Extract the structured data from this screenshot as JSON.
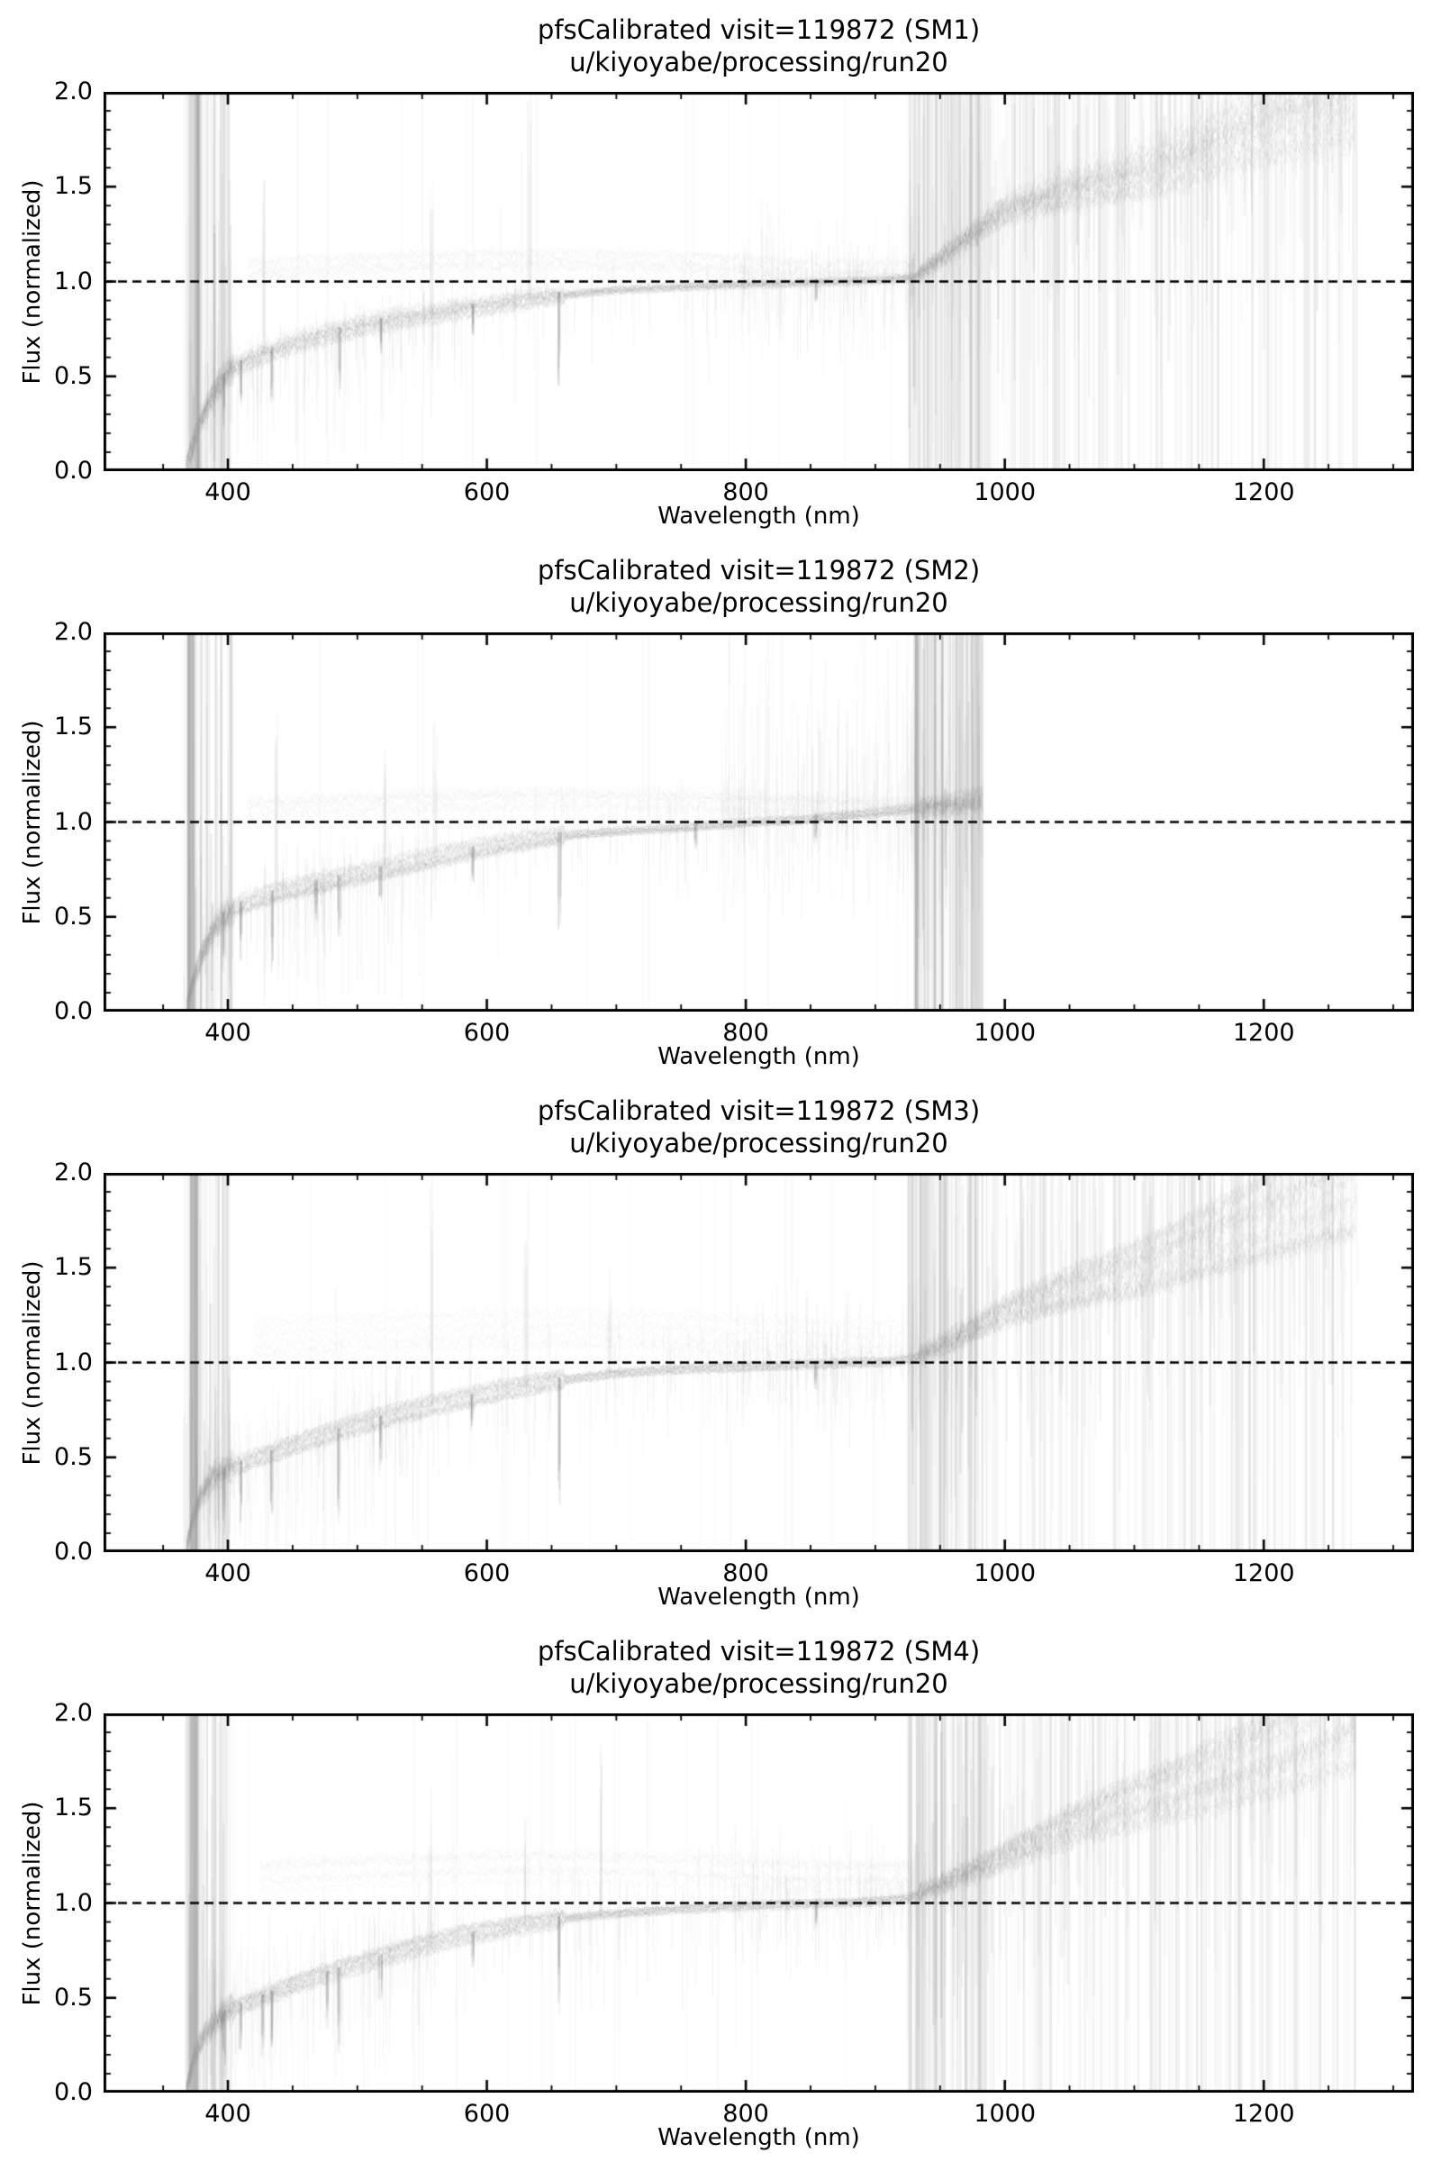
{
  "figure": {
    "background_color": "#ffffff",
    "frame_color": "#000000",
    "spectra_color": "#6e6e6e",
    "stripe_color": "#8c8c8c",
    "reference_line": {
      "y": 1.0,
      "style": "dashed",
      "color": "#000000"
    }
  },
  "chart_data": [
    {
      "type": "line",
      "panel": "SM1",
      "title": "pfsCalibrated visit=119872 (SM1)",
      "subtitle": "u/kiyoyabe/processing/run20",
      "xlabel": "Wavelength (nm)",
      "ylabel": "Flux (normalized)",
      "xlim": [
        304,
        1316
      ],
      "ylim": [
        0.0,
        2.0
      ],
      "xticks": [
        400,
        600,
        800,
        1000,
        1200
      ],
      "xtick_labels": [
        "400",
        "600",
        "800",
        "1000",
        "1200"
      ],
      "yticks": [
        0.0,
        0.5,
        1.0,
        1.5,
        2.0
      ],
      "ytick_labels": [
        "0.0",
        "0.5",
        "1.0",
        "1.5",
        "2.0"
      ],
      "x_minor_step": 50,
      "y_minor_step": 0.1,
      "reference_line_y": 1.0,
      "wavelength_coverage_nm": [
        368,
        1272
      ],
      "envelope": [
        [
          368,
          0.02
        ],
        [
          372,
          0.12
        ],
        [
          378,
          0.25
        ],
        [
          385,
          0.36
        ],
        [
          392,
          0.44
        ],
        [
          400,
          0.53
        ],
        [
          415,
          0.58
        ],
        [
          430,
          0.62
        ],
        [
          450,
          0.67
        ],
        [
          475,
          0.72
        ],
        [
          500,
          0.76
        ],
        [
          525,
          0.795
        ],
        [
          550,
          0.82
        ],
        [
          575,
          0.85
        ],
        [
          600,
          0.87
        ],
        [
          625,
          0.9
        ],
        [
          650,
          0.92
        ],
        [
          675,
          0.94
        ],
        [
          700,
          0.955
        ],
        [
          730,
          0.965
        ],
        [
          760,
          0.975
        ],
        [
          800,
          0.985
        ],
        [
          850,
          0.995
        ],
        [
          900,
          1.005
        ],
        [
          930,
          1.02
        ],
        [
          950,
          1.12
        ],
        [
          975,
          1.25
        ],
        [
          1000,
          1.38
        ],
        [
          1030,
          1.44
        ],
        [
          1060,
          1.5
        ],
        [
          1100,
          1.56
        ],
        [
          1140,
          1.66
        ],
        [
          1180,
          1.78
        ],
        [
          1220,
          1.88
        ],
        [
          1250,
          1.95
        ],
        [
          1272,
          2.0
        ]
      ],
      "upper_band": {
        "range": [
          415,
          930
        ],
        "flux": [
          1.01,
          1.12
        ]
      },
      "hair_regions": [
        {
          "range": [
            380,
            560
          ],
          "count": 220,
          "up": 0.12,
          "down": 0.5
        },
        {
          "range": [
            560,
            800
          ],
          "count": 120,
          "up": 0.15,
          "down": 0.3
        },
        {
          "range": [
            790,
            935
          ],
          "count": 200,
          "up": 0.3,
          "down": 0.35
        }
      ],
      "absorption_lines": [
        [
          397,
          0.25
        ],
        [
          410,
          0.22
        ],
        [
          434,
          0.25
        ],
        [
          486,
          0.32
        ],
        [
          518,
          0.16
        ],
        [
          589,
          0.14
        ],
        [
          656,
          0.45
        ],
        [
          854,
          0.1
        ]
      ],
      "spike_columns": [
        [
          427,
          1.55
        ],
        [
          557,
          1.5
        ],
        [
          633,
          1.95
        ]
      ],
      "noise_bands": [
        {
          "range": [
            366,
            404
          ],
          "count": 100,
          "full": 0.45,
          "a_max": 0.22,
          "dark": [
            371,
            379
          ]
        },
        {
          "range": [
            925,
            985
          ],
          "count": 180,
          "full": 0.55,
          "a_max": 0.2
        },
        {
          "range": [
            985,
            1272
          ],
          "count": 430,
          "full": 0.42,
          "a_max": 0.16
        },
        {
          "range": [
            404,
            925
          ],
          "count": 20,
          "full": 0.7,
          "a_max": 0.05
        }
      ],
      "seed": 11
    },
    {
      "type": "line",
      "panel": "SM2",
      "title": "pfsCalibrated visit=119872 (SM2)",
      "subtitle": "u/kiyoyabe/processing/run20",
      "xlabel": "Wavelength (nm)",
      "ylabel": "Flux (normalized)",
      "xlim": [
        304,
        1316
      ],
      "ylim": [
        0.0,
        2.0
      ],
      "xticks": [
        400,
        600,
        800,
        1000,
        1200
      ],
      "xtick_labels": [
        "400",
        "600",
        "800",
        "1000",
        "1200"
      ],
      "yticks": [
        0.0,
        0.5,
        1.0,
        1.5,
        2.0
      ],
      "ytick_labels": [
        "0.0",
        "0.5",
        "1.0",
        "1.5",
        "2.0"
      ],
      "x_minor_step": 50,
      "y_minor_step": 0.1,
      "reference_line_y": 1.0,
      "wavelength_coverage_nm": [
        368,
        983
      ],
      "envelope": [
        [
          368,
          0.02
        ],
        [
          373,
          0.15
        ],
        [
          380,
          0.3
        ],
        [
          388,
          0.42
        ],
        [
          396,
          0.5
        ],
        [
          410,
          0.56
        ],
        [
          425,
          0.6
        ],
        [
          440,
          0.63
        ],
        [
          460,
          0.66
        ],
        [
          480,
          0.69
        ],
        [
          500,
          0.72
        ],
        [
          520,
          0.75
        ],
        [
          540,
          0.78
        ],
        [
          560,
          0.81
        ],
        [
          580,
          0.84
        ],
        [
          600,
          0.865
        ],
        [
          620,
          0.89
        ],
        [
          640,
          0.91
        ],
        [
          660,
          0.93
        ],
        [
          690,
          0.945
        ],
        [
          720,
          0.96
        ],
        [
          750,
          0.97
        ],
        [
          780,
          0.985
        ],
        [
          810,
          1.0
        ],
        [
          840,
          1.01
        ],
        [
          870,
          1.03
        ],
        [
          900,
          1.05
        ],
        [
          930,
          1.07
        ],
        [
          955,
          1.09
        ],
        [
          983,
          1.12
        ]
      ],
      "upper_band": {
        "range": [
          415,
          975
        ],
        "flux": [
          1.02,
          1.13
        ]
      },
      "hair_regions": [
        {
          "range": [
            380,
            560
          ],
          "count": 220,
          "up": 0.2,
          "down": 0.55
        },
        {
          "range": [
            560,
            780
          ],
          "count": 120,
          "up": 0.2,
          "down": 0.3
        },
        {
          "range": [
            780,
            933
          ],
          "count": 260,
          "up": 0.7,
          "down": 0.4
        }
      ],
      "absorption_lines": [
        [
          397,
          0.3
        ],
        [
          410,
          0.28
        ],
        [
          434,
          0.42
        ],
        [
          468,
          0.2
        ],
        [
          486,
          0.3
        ],
        [
          518,
          0.22
        ],
        [
          589,
          0.18
        ],
        [
          656,
          0.45
        ],
        [
          761,
          0.12
        ],
        [
          854,
          0.12
        ]
      ],
      "spike_columns": [
        [
          437,
          1.5
        ],
        [
          521,
          1.35
        ],
        [
          560,
          1.5
        ]
      ],
      "noise_bands": [
        {
          "range": [
            366,
            404
          ],
          "count": 90,
          "full": 0.4,
          "a_max": 0.22,
          "dark": [
            369,
            374
          ]
        },
        {
          "range": [
            930,
            983
          ],
          "count": 230,
          "full": 0.6,
          "a_max": 0.2
        },
        {
          "range": [
            404,
            930
          ],
          "count": 18,
          "full": 0.7,
          "a_max": 0.05
        }
      ],
      "seed": 22
    },
    {
      "type": "line",
      "panel": "SM3",
      "title": "pfsCalibrated visit=119872 (SM3)",
      "subtitle": "u/kiyoyabe/processing/run20",
      "xlabel": "Wavelength (nm)",
      "ylabel": "Flux (normalized)",
      "xlim": [
        304,
        1316
      ],
      "ylim": [
        0.0,
        2.0
      ],
      "xticks": [
        400,
        600,
        800,
        1000,
        1200
      ],
      "xtick_labels": [
        "400",
        "600",
        "800",
        "1000",
        "1200"
      ],
      "yticks": [
        0.0,
        0.5,
        1.0,
        1.5,
        2.0
      ],
      "ytick_labels": [
        "0.0",
        "0.5",
        "1.0",
        "1.5",
        "2.0"
      ],
      "x_minor_step": 50,
      "y_minor_step": 0.1,
      "reference_line_y": 1.0,
      "wavelength_coverage_nm": [
        368,
        1272
      ],
      "envelope": [
        [
          368,
          0.02
        ],
        [
          372,
          0.15
        ],
        [
          378,
          0.28
        ],
        [
          386,
          0.37
        ],
        [
          395,
          0.42
        ],
        [
          410,
          0.46
        ],
        [
          430,
          0.51
        ],
        [
          450,
          0.555
        ],
        [
          470,
          0.6
        ],
        [
          490,
          0.645
        ],
        [
          510,
          0.685
        ],
        [
          530,
          0.72
        ],
        [
          550,
          0.755
        ],
        [
          570,
          0.785
        ],
        [
          590,
          0.815
        ],
        [
          610,
          0.845
        ],
        [
          630,
          0.87
        ],
        [
          650,
          0.895
        ],
        [
          675,
          0.92
        ],
        [
          700,
          0.94
        ],
        [
          730,
          0.955
        ],
        [
          760,
          0.965
        ],
        [
          800,
          0.975
        ],
        [
          840,
          0.985
        ],
        [
          880,
          0.995
        ],
        [
          910,
          1.0
        ],
        [
          930,
          1.02
        ],
        [
          950,
          1.08
        ],
        [
          975,
          1.17
        ],
        [
          1000,
          1.26
        ],
        [
          1030,
          1.33
        ],
        [
          1060,
          1.4
        ],
        [
          1100,
          1.47
        ],
        [
          1140,
          1.57
        ],
        [
          1180,
          1.67
        ],
        [
          1220,
          1.78
        ],
        [
          1250,
          1.86
        ],
        [
          1272,
          1.92
        ]
      ],
      "upper_band": {
        "range": [
          420,
          930
        ],
        "flux": [
          1.03,
          1.25
        ]
      },
      "hair_regions": [
        {
          "range": [
            380,
            560
          ],
          "count": 240,
          "up": 0.3,
          "down": 0.55
        },
        {
          "range": [
            560,
            800
          ],
          "count": 140,
          "up": 0.25,
          "down": 0.35
        },
        {
          "range": [
            790,
            935
          ],
          "count": 180,
          "up": 0.3,
          "down": 0.3
        }
      ],
      "absorption_lines": [
        [
          397,
          0.3
        ],
        [
          410,
          0.28
        ],
        [
          434,
          0.3
        ],
        [
          486,
          0.5
        ],
        [
          518,
          0.22
        ],
        [
          589,
          0.16
        ],
        [
          656,
          0.6
        ],
        [
          854,
          0.12
        ]
      ],
      "spike_columns": [
        [
          557,
          1.95
        ],
        [
          630,
          1.8
        ],
        [
          695,
          1.5
        ],
        [
          1013,
          1.9
        ]
      ],
      "noise_bands": [
        {
          "range": [
            366,
            402
          ],
          "count": 100,
          "full": 0.45,
          "a_max": 0.22,
          "dark": [
            370,
            376
          ]
        },
        {
          "range": [
            925,
            985
          ],
          "count": 180,
          "full": 0.5,
          "a_max": 0.2
        },
        {
          "range": [
            985,
            1272
          ],
          "count": 400,
          "full": 0.42,
          "a_max": 0.16
        },
        {
          "range": [
            402,
            925
          ],
          "count": 22,
          "full": 0.7,
          "a_max": 0.05
        }
      ],
      "seed": 33
    },
    {
      "type": "line",
      "panel": "SM4",
      "title": "pfsCalibrated visit=119872 (SM4)",
      "subtitle": "u/kiyoyabe/processing/run20",
      "xlabel": "Wavelength (nm)",
      "ylabel": "Flux (normalized)",
      "xlim": [
        304,
        1316
      ],
      "ylim": [
        0.0,
        2.0
      ],
      "xticks": [
        400,
        600,
        800,
        1000,
        1200
      ],
      "xtick_labels": [
        "400",
        "600",
        "800",
        "1000",
        "1200"
      ],
      "yticks": [
        0.0,
        0.5,
        1.0,
        1.5,
        2.0
      ],
      "ytick_labels": [
        "0.0",
        "0.5",
        "1.0",
        "1.5",
        "2.0"
      ],
      "x_minor_step": 50,
      "y_minor_step": 0.1,
      "reference_line_y": 1.0,
      "wavelength_coverage_nm": [
        368,
        1272
      ],
      "envelope": [
        [
          368,
          0.02
        ],
        [
          374,
          0.18
        ],
        [
          382,
          0.3
        ],
        [
          392,
          0.38
        ],
        [
          400,
          0.43
        ],
        [
          420,
          0.48
        ],
        [
          440,
          0.535
        ],
        [
          460,
          0.585
        ],
        [
          480,
          0.63
        ],
        [
          500,
          0.67
        ],
        [
          520,
          0.71
        ],
        [
          540,
          0.75
        ],
        [
          560,
          0.785
        ],
        [
          580,
          0.82
        ],
        [
          600,
          0.845
        ],
        [
          620,
          0.87
        ],
        [
          640,
          0.89
        ],
        [
          660,
          0.915
        ],
        [
          690,
          0.935
        ],
        [
          720,
          0.95
        ],
        [
          750,
          0.965
        ],
        [
          780,
          0.975
        ],
        [
          810,
          0.985
        ],
        [
          840,
          0.99
        ],
        [
          870,
          0.995
        ],
        [
          900,
          1.005
        ],
        [
          925,
          1.02
        ],
        [
          950,
          1.09
        ],
        [
          975,
          1.16
        ],
        [
          1000,
          1.24
        ],
        [
          1030,
          1.33
        ],
        [
          1060,
          1.42
        ],
        [
          1100,
          1.51
        ],
        [
          1140,
          1.6
        ],
        [
          1180,
          1.7
        ],
        [
          1220,
          1.8
        ],
        [
          1250,
          1.9
        ],
        [
          1272,
          1.97
        ]
      ],
      "upper_band": {
        "range": [
          425,
          930
        ],
        "flux": [
          1.03,
          1.22
        ]
      },
      "hair_regions": [
        {
          "range": [
            380,
            560
          ],
          "count": 240,
          "up": 0.3,
          "down": 0.55
        },
        {
          "range": [
            560,
            800
          ],
          "count": 140,
          "up": 0.25,
          "down": 0.35
        },
        {
          "range": [
            790,
            935
          ],
          "count": 180,
          "up": 0.3,
          "down": 0.3
        }
      ],
      "absorption_lines": [
        [
          397,
          0.3
        ],
        [
          410,
          0.25
        ],
        [
          427,
          0.3
        ],
        [
          434,
          0.28
        ],
        [
          477,
          0.28
        ],
        [
          486,
          0.42
        ],
        [
          518,
          0.2
        ],
        [
          589,
          0.16
        ],
        [
          656,
          0.5
        ],
        [
          854,
          0.12
        ]
      ],
      "spike_columns": [
        [
          556,
          1.55
        ],
        [
          630,
          1.45
        ],
        [
          688,
          1.8
        ]
      ],
      "noise_bands": [
        {
          "range": [
            366,
            402
          ],
          "count": 100,
          "full": 0.45,
          "a_max": 0.22,
          "dark": [
            370,
            377
          ]
        },
        {
          "range": [
            925,
            985
          ],
          "count": 180,
          "full": 0.5,
          "a_max": 0.2
        },
        {
          "range": [
            985,
            1272
          ],
          "count": 410,
          "full": 0.42,
          "a_max": 0.16
        },
        {
          "range": [
            402,
            925
          ],
          "count": 22,
          "full": 0.7,
          "a_max": 0.05
        }
      ],
      "seed": 44
    }
  ]
}
